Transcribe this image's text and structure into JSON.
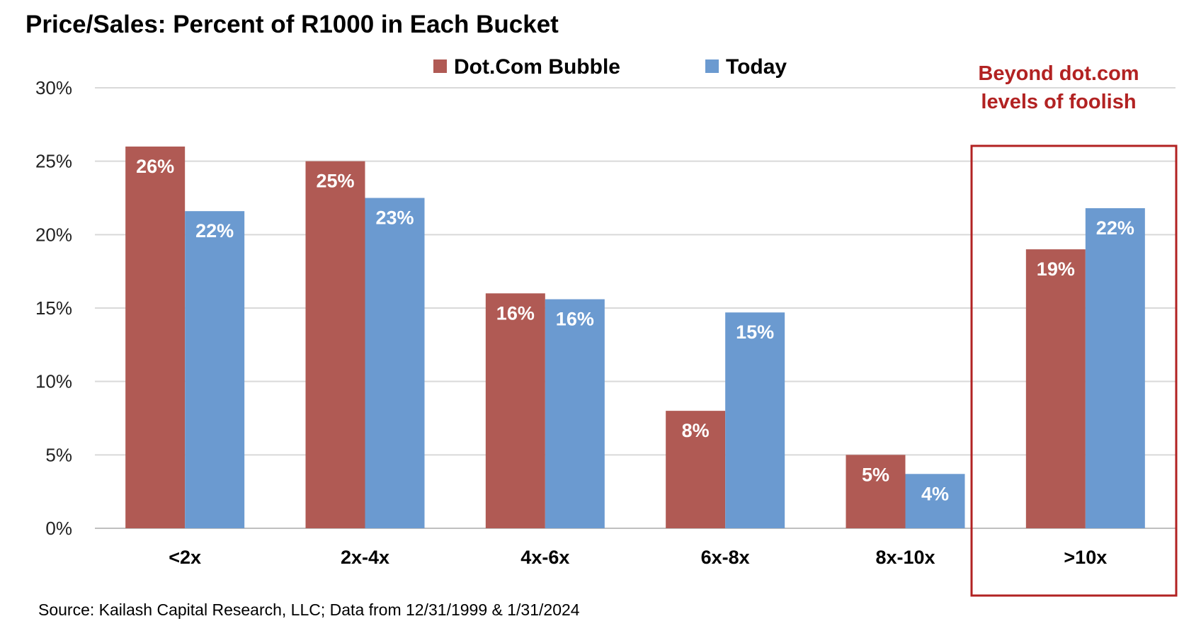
{
  "chart_data": {
    "type": "bar",
    "title": "Price/Sales: Percent of R1000 in Each Bucket",
    "categories": [
      "<2x",
      "2x-4x",
      "4x-6x",
      "6x-8x",
      "8x-10x",
      ">10x"
    ],
    "series": [
      {
        "name": "Dot.Com Bubble",
        "color": "#b05a54",
        "values": [
          26,
          25,
          16,
          8,
          5,
          19
        ],
        "labels": [
          "26%",
          "25%",
          "16%",
          "8%",
          "5%",
          "19%"
        ]
      },
      {
        "name": "Today",
        "color": "#6b9ad0",
        "values": [
          21.6,
          22.5,
          15.6,
          14.7,
          3.7,
          21.8
        ],
        "labels": [
          "22%",
          "23%",
          "16%",
          "15%",
          "4%",
          "22%"
        ]
      }
    ],
    "ylim": [
      0,
      30
    ],
    "yticks": [
      0,
      5,
      10,
      15,
      20,
      25,
      30
    ],
    "ytick_labels": [
      "0%",
      "5%",
      "10%",
      "15%",
      "20%",
      "25%",
      "30%"
    ],
    "xlabel": "",
    "ylabel": "",
    "grid": true,
    "legend_position": "top-center",
    "annotation": {
      "lines": [
        "Beyond dot.com",
        "levels of foolish"
      ],
      "highlight_category": ">10x",
      "color": "#b22222"
    },
    "source": "Source: Kailash Capital Research, LLC; Data from 12/31/1999 & 1/31/2024"
  }
}
